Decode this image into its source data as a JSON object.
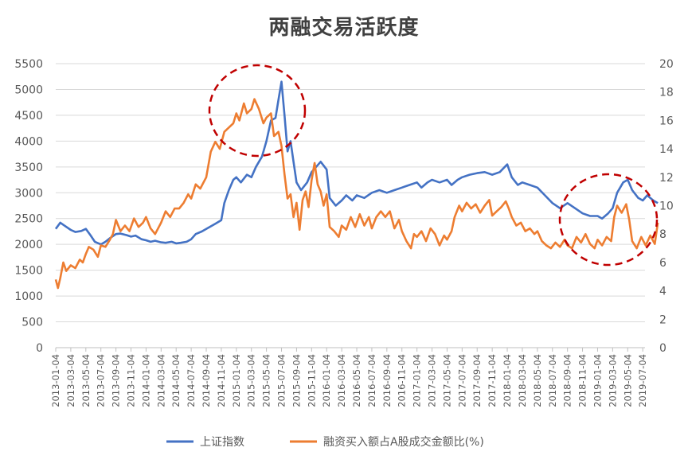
{
  "chart_data": {
    "type": "line",
    "title": "两融交易活跃度",
    "xlabel": "",
    "ylabel_left": "",
    "ylabel_right": "",
    "grid": true,
    "legend_position": "bottom",
    "y_left": {
      "min": 0,
      "max": 5500,
      "step": 500
    },
    "y_right": {
      "min": 0,
      "max": 20,
      "step": 2
    },
    "x_tick_labels": [
      "2013-01-04",
      "2013-03-04",
      "2013-05-04",
      "2013-07-04",
      "2013-09-04",
      "2013-11-04",
      "2014-01-04",
      "2014-03-04",
      "2014-05-04",
      "2014-07-04",
      "2014-09-04",
      "2014-11-04",
      "2015-01-04",
      "2015-03-04",
      "2015-05-04",
      "2015-07-04",
      "2015-09-04",
      "2015-11-04",
      "2016-01-04",
      "2016-03-04",
      "2016-05-04",
      "2016-07-04",
      "2016-09-04",
      "2016-11-04",
      "2017-01-04",
      "2017-03-04",
      "2017-05-04",
      "2017-07-04",
      "2017-09-04",
      "2017-11-04",
      "2018-01-04",
      "2018-03-04",
      "2018-05-04",
      "2018-07-04",
      "2018-09-04",
      "2018-11-04",
      "2019-01-04",
      "2019-03-04",
      "2019-05-04",
      "2019-07-04"
    ],
    "series": [
      {
        "name": "上证指数",
        "axis": "left",
        "color": "#4472C4",
        "points": [
          [
            0,
            2300
          ],
          [
            0.3,
            2420
          ],
          [
            0.6,
            2360
          ],
          [
            1,
            2280
          ],
          [
            1.3,
            2240
          ],
          [
            1.7,
            2260
          ],
          [
            2,
            2300
          ],
          [
            2.3,
            2180
          ],
          [
            2.6,
            2050
          ],
          [
            3,
            2000
          ],
          [
            3.3,
            2050
          ],
          [
            3.6,
            2120
          ],
          [
            4,
            2200
          ],
          [
            4.3,
            2210
          ],
          [
            4.7,
            2180
          ],
          [
            5,
            2150
          ],
          [
            5.3,
            2170
          ],
          [
            5.7,
            2100
          ],
          [
            6,
            2080
          ],
          [
            6.3,
            2050
          ],
          [
            6.6,
            2070
          ],
          [
            7,
            2040
          ],
          [
            7.3,
            2030
          ],
          [
            7.7,
            2050
          ],
          [
            8,
            2020
          ],
          [
            8.3,
            2030
          ],
          [
            8.7,
            2050
          ],
          [
            9,
            2100
          ],
          [
            9.3,
            2200
          ],
          [
            9.7,
            2250
          ],
          [
            10,
            2300
          ],
          [
            10.3,
            2350
          ],
          [
            10.6,
            2400
          ],
          [
            11,
            2470
          ],
          [
            11.2,
            2800
          ],
          [
            11.5,
            3050
          ],
          [
            11.8,
            3250
          ],
          [
            12,
            3300
          ],
          [
            12.3,
            3200
          ],
          [
            12.7,
            3350
          ],
          [
            13,
            3300
          ],
          [
            13.3,
            3500
          ],
          [
            13.7,
            3700
          ],
          [
            14,
            4000
          ],
          [
            14.3,
            4400
          ],
          [
            14.6,
            4450
          ],
          [
            14.8,
            4800
          ],
          [
            15,
            5150
          ],
          [
            15.2,
            4500
          ],
          [
            15.4,
            3800
          ],
          [
            15.6,
            4000
          ],
          [
            15.8,
            3600
          ],
          [
            16,
            3200
          ],
          [
            16.3,
            3050
          ],
          [
            16.7,
            3200
          ],
          [
            17,
            3400
          ],
          [
            17.3,
            3500
          ],
          [
            17.6,
            3600
          ],
          [
            18,
            3450
          ],
          [
            18.2,
            2900
          ],
          [
            18.6,
            2750
          ],
          [
            19,
            2850
          ],
          [
            19.3,
            2950
          ],
          [
            19.7,
            2850
          ],
          [
            20,
            2950
          ],
          [
            20.5,
            2900
          ],
          [
            21,
            3000
          ],
          [
            21.5,
            3050
          ],
          [
            22,
            3000
          ],
          [
            22.5,
            3050
          ],
          [
            23,
            3100
          ],
          [
            23.5,
            3150
          ],
          [
            24,
            3200
          ],
          [
            24.3,
            3100
          ],
          [
            24.7,
            3200
          ],
          [
            25,
            3250
          ],
          [
            25.5,
            3200
          ],
          [
            26,
            3250
          ],
          [
            26.3,
            3150
          ],
          [
            26.7,
            3250
          ],
          [
            27,
            3300
          ],
          [
            27.5,
            3350
          ],
          [
            28,
            3380
          ],
          [
            28.5,
            3400
          ],
          [
            29,
            3350
          ],
          [
            29.5,
            3400
          ],
          [
            30,
            3550
          ],
          [
            30.3,
            3300
          ],
          [
            30.7,
            3150
          ],
          [
            31,
            3200
          ],
          [
            31.5,
            3150
          ],
          [
            32,
            3100
          ],
          [
            32.5,
            2950
          ],
          [
            33,
            2800
          ],
          [
            33.5,
            2700
          ],
          [
            34,
            2800
          ],
          [
            34.5,
            2700
          ],
          [
            35,
            2600
          ],
          [
            35.5,
            2550
          ],
          [
            36,
            2550
          ],
          [
            36.3,
            2500
          ],
          [
            36.7,
            2600
          ],
          [
            37,
            2700
          ],
          [
            37.3,
            3000
          ],
          [
            37.7,
            3200
          ],
          [
            38,
            3250
          ],
          [
            38.3,
            3050
          ],
          [
            38.7,
            2900
          ],
          [
            39,
            2850
          ],
          [
            39.3,
            2950
          ],
          [
            39.7,
            2850
          ],
          [
            40,
            2800
          ]
        ]
      },
      {
        "name": "融资买入额占A股成交金额比(%)",
        "axis": "right",
        "color": "#ED7D31",
        "points": [
          [
            0,
            4.8
          ],
          [
            0.15,
            4.2
          ],
          [
            0.3,
            4.9
          ],
          [
            0.5,
            6.0
          ],
          [
            0.7,
            5.4
          ],
          [
            1,
            5.8
          ],
          [
            1.3,
            5.6
          ],
          [
            1.6,
            6.2
          ],
          [
            1.8,
            6.0
          ],
          [
            2,
            6.6
          ],
          [
            2.2,
            7.1
          ],
          [
            2.5,
            6.9
          ],
          [
            2.8,
            6.4
          ],
          [
            3,
            7.2
          ],
          [
            3.3,
            7.1
          ],
          [
            3.6,
            7.6
          ],
          [
            3.8,
            8.0
          ],
          [
            4,
            9.0
          ],
          [
            4.3,
            8.2
          ],
          [
            4.6,
            8.6
          ],
          [
            4.9,
            8.2
          ],
          [
            5.2,
            9.1
          ],
          [
            5.5,
            8.5
          ],
          [
            5.8,
            8.8
          ],
          [
            6,
            9.2
          ],
          [
            6.3,
            8.4
          ],
          [
            6.6,
            8.0
          ],
          [
            7,
            8.8
          ],
          [
            7.3,
            9.6
          ],
          [
            7.6,
            9.2
          ],
          [
            7.9,
            9.8
          ],
          [
            8.2,
            9.8
          ],
          [
            8.5,
            10.2
          ],
          [
            8.8,
            10.8
          ],
          [
            9,
            10.5
          ],
          [
            9.3,
            11.5
          ],
          [
            9.6,
            11.2
          ],
          [
            10,
            12.0
          ],
          [
            10.3,
            13.8
          ],
          [
            10.6,
            14.5
          ],
          [
            10.9,
            14.0
          ],
          [
            11.2,
            15.2
          ],
          [
            11.5,
            15.5
          ],
          [
            11.8,
            15.8
          ],
          [
            12,
            16.5
          ],
          [
            12.2,
            16.0
          ],
          [
            12.5,
            17.2
          ],
          [
            12.7,
            16.5
          ],
          [
            13,
            16.8
          ],
          [
            13.2,
            17.5
          ],
          [
            13.5,
            16.8
          ],
          [
            13.8,
            15.8
          ],
          [
            14,
            16.2
          ],
          [
            14.3,
            16.5
          ],
          [
            14.5,
            14.9
          ],
          [
            14.8,
            15.2
          ],
          [
            15,
            14.2
          ],
          [
            15.2,
            12.2
          ],
          [
            15.4,
            10.5
          ],
          [
            15.6,
            10.8
          ],
          [
            15.8,
            9.2
          ],
          [
            16,
            10.2
          ],
          [
            16.2,
            8.3
          ],
          [
            16.4,
            10.4
          ],
          [
            16.6,
            11.0
          ],
          [
            16.8,
            9.9
          ],
          [
            17,
            11.8
          ],
          [
            17.2,
            13.0
          ],
          [
            17.4,
            11.5
          ],
          [
            17.6,
            11.0
          ],
          [
            17.8,
            10.0
          ],
          [
            18,
            10.8
          ],
          [
            18.2,
            8.5
          ],
          [
            18.5,
            8.2
          ],
          [
            18.8,
            7.8
          ],
          [
            19,
            8.6
          ],
          [
            19.3,
            8.3
          ],
          [
            19.6,
            9.2
          ],
          [
            19.9,
            8.5
          ],
          [
            20.2,
            9.4
          ],
          [
            20.5,
            8.6
          ],
          [
            20.8,
            9.2
          ],
          [
            21,
            8.4
          ],
          [
            21.3,
            9.2
          ],
          [
            21.6,
            9.6
          ],
          [
            21.9,
            9.2
          ],
          [
            22.2,
            9.6
          ],
          [
            22.5,
            8.4
          ],
          [
            22.8,
            9.0
          ],
          [
            23,
            8.2
          ],
          [
            23.3,
            7.5
          ],
          [
            23.6,
            7.0
          ],
          [
            23.8,
            8.0
          ],
          [
            24,
            7.8
          ],
          [
            24.3,
            8.2
          ],
          [
            24.6,
            7.5
          ],
          [
            24.9,
            8.4
          ],
          [
            25.2,
            8.0
          ],
          [
            25.5,
            7.2
          ],
          [
            25.8,
            7.9
          ],
          [
            26,
            7.6
          ],
          [
            26.3,
            8.2
          ],
          [
            26.5,
            9.2
          ],
          [
            26.8,
            10.0
          ],
          [
            27,
            9.6
          ],
          [
            27.3,
            10.2
          ],
          [
            27.6,
            9.8
          ],
          [
            27.9,
            10.1
          ],
          [
            28.2,
            9.5
          ],
          [
            28.5,
            10.0
          ],
          [
            28.8,
            10.4
          ],
          [
            29,
            9.3
          ],
          [
            29.3,
            9.6
          ],
          [
            29.6,
            9.9
          ],
          [
            29.9,
            10.3
          ],
          [
            30.1,
            9.8
          ],
          [
            30.3,
            9.2
          ],
          [
            30.6,
            8.6
          ],
          [
            30.9,
            8.8
          ],
          [
            31.2,
            8.2
          ],
          [
            31.5,
            8.4
          ],
          [
            31.8,
            8.0
          ],
          [
            32,
            8.2
          ],
          [
            32.3,
            7.5
          ],
          [
            32.6,
            7.2
          ],
          [
            32.9,
            7.0
          ],
          [
            33.2,
            7.4
          ],
          [
            33.5,
            7.1
          ],
          [
            33.8,
            7.6
          ],
          [
            34,
            7.2
          ],
          [
            34.3,
            7.0
          ],
          [
            34.6,
            7.8
          ],
          [
            34.9,
            7.4
          ],
          [
            35.2,
            8.0
          ],
          [
            35.5,
            7.3
          ],
          [
            35.8,
            7.0
          ],
          [
            36,
            7.6
          ],
          [
            36.3,
            7.2
          ],
          [
            36.6,
            7.8
          ],
          [
            36.9,
            7.5
          ],
          [
            37.1,
            9.2
          ],
          [
            37.3,
            10.0
          ],
          [
            37.6,
            9.5
          ],
          [
            37.9,
            10.1
          ],
          [
            38.1,
            9.0
          ],
          [
            38.3,
            7.5
          ],
          [
            38.6,
            7.0
          ],
          [
            38.9,
            7.8
          ],
          [
            39.2,
            7.2
          ],
          [
            39.5,
            7.9
          ],
          [
            39.8,
            7.3
          ],
          [
            40,
            8.8
          ]
        ]
      }
    ]
  }
}
